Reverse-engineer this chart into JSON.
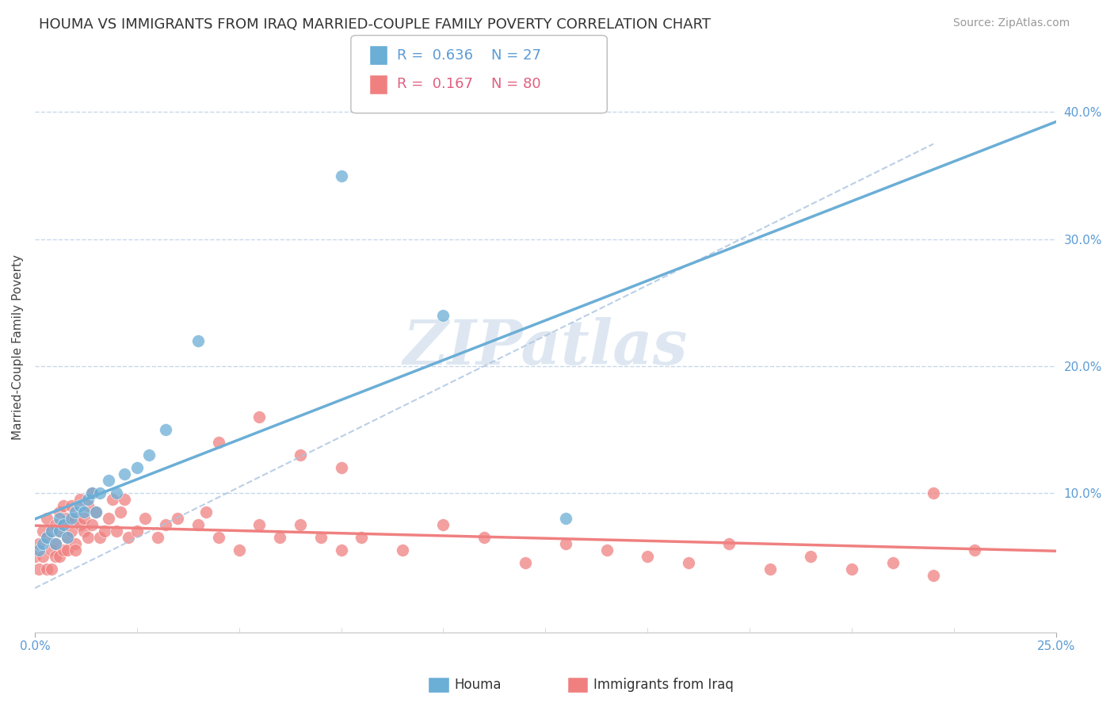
{
  "title": "HOUMA VS IMMIGRANTS FROM IRAQ MARRIED-COUPLE FAMILY POVERTY CORRELATION CHART",
  "source_text": "Source: ZipAtlas.com",
  "ylabel": "Married-Couple Family Poverty",
  "xlim": [
    0.0,
    0.25
  ],
  "ylim": [
    -0.01,
    0.44
  ],
  "ytick_vals": [
    0.1,
    0.2,
    0.3,
    0.4
  ],
  "ytick_labels": [
    "10.0%",
    "20.0%",
    "30.0%",
    "40.0%"
  ],
  "xtick_vals": [
    0.0,
    0.25
  ],
  "xtick_labels": [
    "0.0%",
    "25.0%"
  ],
  "houma_color": "#6baed6",
  "iraq_color": "#f08080",
  "houma_R": 0.636,
  "houma_N": 27,
  "iraq_R": 0.167,
  "iraq_N": 80,
  "houma_scatter_x": [
    0.001,
    0.002,
    0.003,
    0.004,
    0.005,
    0.006,
    0.006,
    0.007,
    0.008,
    0.009,
    0.01,
    0.011,
    0.012,
    0.013,
    0.014,
    0.015,
    0.016,
    0.018,
    0.02,
    0.022,
    0.025,
    0.028,
    0.032,
    0.04,
    0.075,
    0.1,
    0.13
  ],
  "houma_scatter_y": [
    0.055,
    0.06,
    0.065,
    0.07,
    0.06,
    0.08,
    0.07,
    0.075,
    0.065,
    0.08,
    0.085,
    0.09,
    0.085,
    0.095,
    0.1,
    0.085,
    0.1,
    0.11,
    0.1,
    0.115,
    0.12,
    0.13,
    0.15,
    0.22,
    0.35,
    0.24,
    0.08
  ],
  "iraq_scatter_x": [
    0.0,
    0.001,
    0.001,
    0.002,
    0.002,
    0.003,
    0.003,
    0.003,
    0.004,
    0.004,
    0.004,
    0.005,
    0.005,
    0.005,
    0.006,
    0.006,
    0.006,
    0.007,
    0.007,
    0.007,
    0.008,
    0.008,
    0.008,
    0.009,
    0.009,
    0.01,
    0.01,
    0.01,
    0.011,
    0.011,
    0.012,
    0.012,
    0.013,
    0.013,
    0.014,
    0.014,
    0.015,
    0.016,
    0.017,
    0.018,
    0.019,
    0.02,
    0.021,
    0.022,
    0.023,
    0.025,
    0.027,
    0.03,
    0.032,
    0.035,
    0.04,
    0.042,
    0.045,
    0.05,
    0.055,
    0.06,
    0.065,
    0.07,
    0.075,
    0.08,
    0.09,
    0.1,
    0.11,
    0.12,
    0.13,
    0.14,
    0.15,
    0.16,
    0.17,
    0.18,
    0.19,
    0.2,
    0.21,
    0.22,
    0.23,
    0.045,
    0.055,
    0.065,
    0.075,
    0.22
  ],
  "iraq_scatter_y": [
    0.05,
    0.04,
    0.06,
    0.07,
    0.05,
    0.08,
    0.04,
    0.065,
    0.055,
    0.07,
    0.04,
    0.06,
    0.05,
    0.075,
    0.07,
    0.05,
    0.085,
    0.09,
    0.055,
    0.075,
    0.065,
    0.08,
    0.055,
    0.07,
    0.09,
    0.06,
    0.08,
    0.055,
    0.075,
    0.095,
    0.07,
    0.08,
    0.09,
    0.065,
    0.1,
    0.075,
    0.085,
    0.065,
    0.07,
    0.08,
    0.095,
    0.07,
    0.085,
    0.095,
    0.065,
    0.07,
    0.08,
    0.065,
    0.075,
    0.08,
    0.075,
    0.085,
    0.065,
    0.055,
    0.075,
    0.065,
    0.075,
    0.065,
    0.055,
    0.065,
    0.055,
    0.075,
    0.065,
    0.045,
    0.06,
    0.055,
    0.05,
    0.045,
    0.06,
    0.04,
    0.05,
    0.04,
    0.045,
    0.035,
    0.055,
    0.14,
    0.16,
    0.13,
    0.12,
    0.1
  ],
  "houma_trend_x": [
    0.0,
    0.25
  ],
  "houma_trend_y_start": 0.035,
  "houma_trend_slope": 1.55,
  "iraq_trend_y_start": 0.055,
  "iraq_trend_slope": 0.2,
  "dash_line_x": [
    0.0,
    0.22
  ],
  "dash_line_y": [
    0.025,
    0.375
  ],
  "watermark": "ZIPatlas",
  "background_color": "#ffffff",
  "grid_color": "#c8d8e8",
  "title_fontsize": 13,
  "axis_label_fontsize": 11,
  "tick_fontsize": 11,
  "legend_fontsize": 13,
  "source_fontsize": 10
}
